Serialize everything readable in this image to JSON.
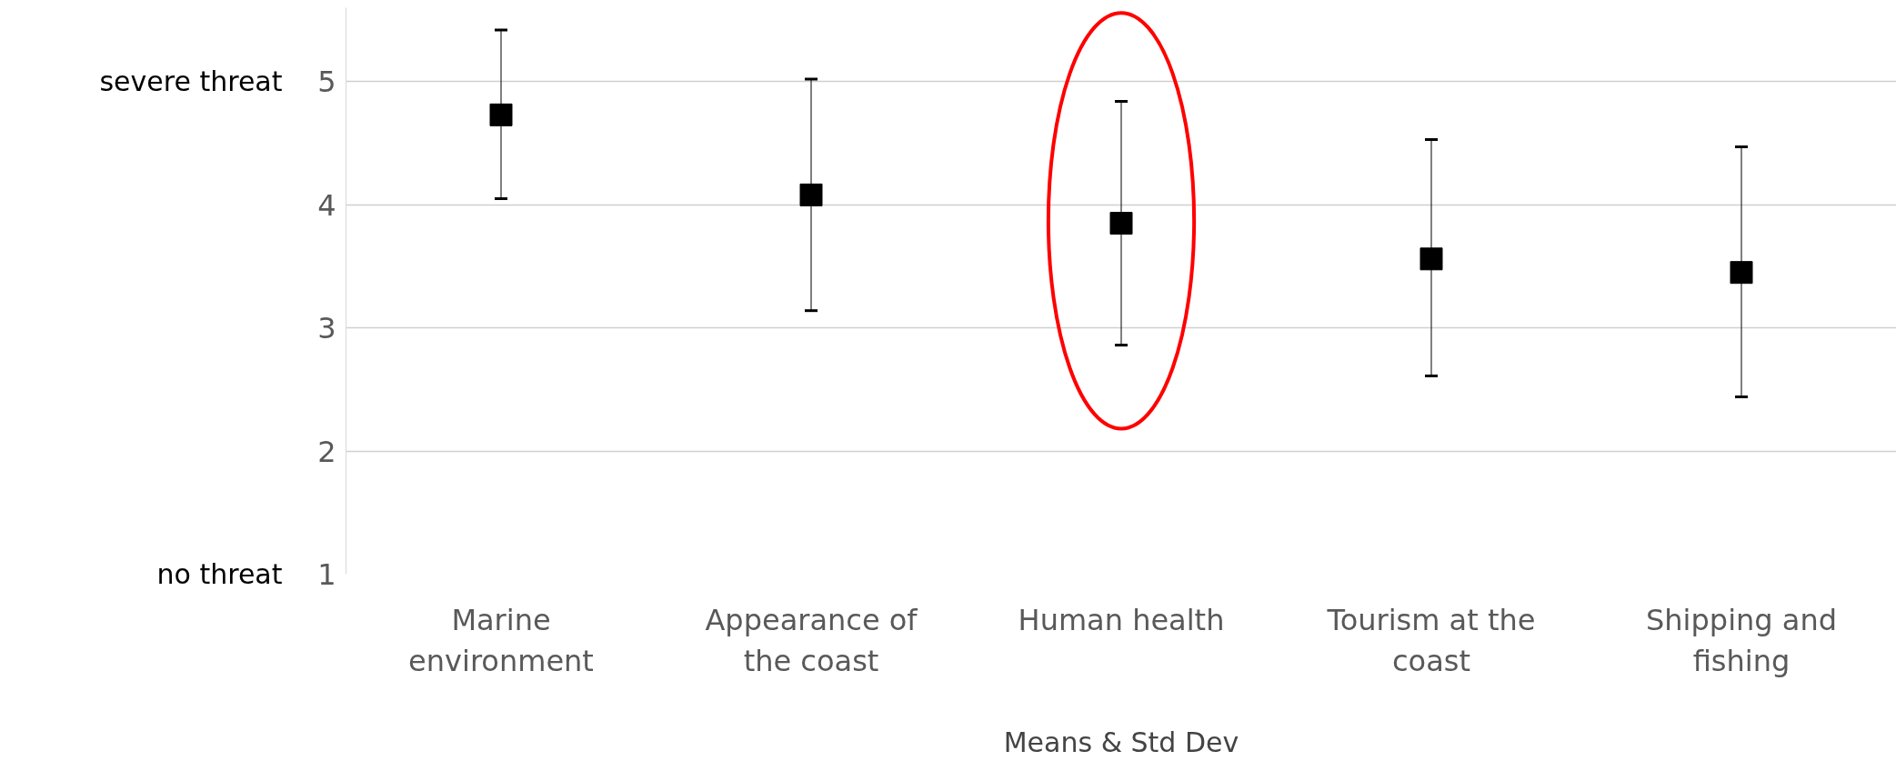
{
  "chart_data": {
    "type": "scatter",
    "xlabel": "Means & Std Dev",
    "categories": [
      "Marine environment",
      "Appearance of the coast",
      "Human health",
      "Tourism at the coast",
      "Shipping and fishing"
    ],
    "values": [
      4.73,
      4.08,
      3.85,
      3.56,
      3.45
    ],
    "errors": [
      [
        4.05,
        5.42
      ],
      [
        3.14,
        5.02
      ],
      [
        2.86,
        4.84
      ],
      [
        2.61,
        4.53
      ],
      [
        2.44,
        4.47
      ]
    ],
    "color": "#000000",
    "marker": "square",
    "ylim": [
      1,
      5.6
    ],
    "yticks": [
      1,
      2,
      3,
      4,
      5
    ],
    "grid": "y",
    "annotations": [
      "severe threat",
      "no threat"
    ]
  }
}
